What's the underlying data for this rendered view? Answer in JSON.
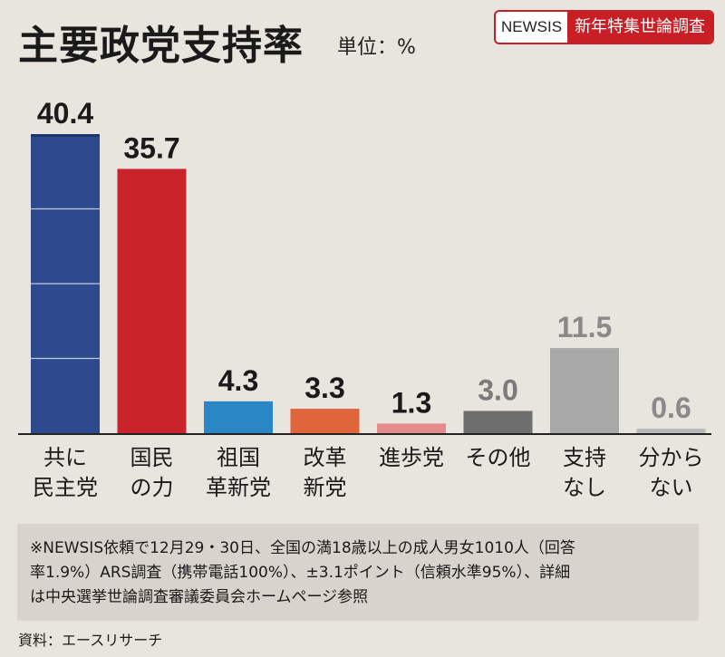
{
  "header": {
    "title": "主要政党支持率",
    "unit": "単位：%",
    "badge_brand": "NEWSIS",
    "badge_label": "新年特集世論調査"
  },
  "colors": {
    "background": "#e8e4de",
    "axis": "#222222",
    "accent": "#c81e25"
  },
  "chart_data": {
    "type": "bar",
    "title": "主要政党支持率",
    "ylabel": "単位：%",
    "xlabel": "",
    "ylim": [
      0,
      40.4
    ],
    "categories": [
      "共に\n民主党",
      "国民\nの力",
      "祖国\n革新党",
      "改革\n新党",
      "進歩党",
      "その他",
      "支持\nなし",
      "分から\nない"
    ],
    "values": [
      40.4,
      35.7,
      4.3,
      3.3,
      1.3,
      3.0,
      11.5,
      0.6
    ],
    "value_labels": [
      "40.4",
      "35.7",
      "4.3",
      "3.3",
      "1.3",
      "3.0",
      "11.5",
      "0.6"
    ],
    "bar_colors": [
      "#2e4a8e",
      "#c8242a",
      "#2a86c4",
      "#e0653a",
      "#e48a8a",
      "#6e6e6e",
      "#a8a8a8",
      "#b8b8b8"
    ],
    "label_colors": [
      "#1a1a1a",
      "#1a1a1a",
      "#1a1a1a",
      "#1a1a1a",
      "#1a1a1a",
      "#7a7a7a",
      "#8a8a8a",
      "#8a8a8a"
    ]
  },
  "footnote": {
    "lines": [
      "※NEWSIS依頼で12月29・30日、全国の満18歳以上の成人男女1010人（回答",
      "率1.9%）ARS調査（携帯電話100%）、±3.1ポイント（信頼水準95%）、詳細",
      "は中央選挙世論調査審議委員会ホームページ参照"
    ]
  },
  "source": "資料：エースリサーチ"
}
